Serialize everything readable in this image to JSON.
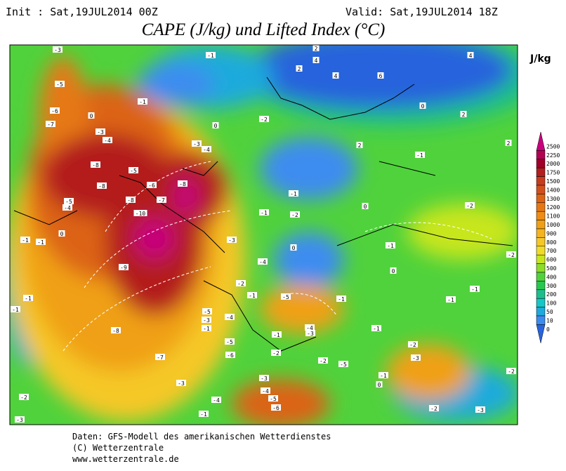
{
  "header": {
    "init": "Init : Sat,19JUL2014 00Z",
    "valid": "Valid: Sat,19JUL2014 18Z",
    "title": "CAPE (J/kg) und Lifted Index (°C)"
  },
  "legend": {
    "unit": "J/kg",
    "levels": [
      {
        "label": "2500",
        "color": "#c8007c"
      },
      {
        "label": "2250",
        "color": "#b40050"
      },
      {
        "label": "2000",
        "color": "#a00028"
      },
      {
        "label": "1750",
        "color": "#b41e1e"
      },
      {
        "label": "1500",
        "color": "#c83c1e"
      },
      {
        "label": "1400",
        "color": "#d2501e"
      },
      {
        "label": "1300",
        "color": "#dc6414"
      },
      {
        "label": "1200",
        "color": "#e67814"
      },
      {
        "label": "1100",
        "color": "#f08c14"
      },
      {
        "label": "1000",
        "color": "#f0a014"
      },
      {
        "label": "900",
        "color": "#f5b41e"
      },
      {
        "label": "800",
        "color": "#f5c828"
      },
      {
        "label": "700",
        "color": "#f0dc28"
      },
      {
        "label": "600",
        "color": "#c8e61e"
      },
      {
        "label": "500",
        "color": "#8cdc28"
      },
      {
        "label": "400",
        "color": "#50d23c"
      },
      {
        "label": "300",
        "color": "#28c850"
      },
      {
        "label": "200",
        "color": "#1ebe8c"
      },
      {
        "label": "100",
        "color": "#14c8c8"
      },
      {
        "label": "50",
        "color": "#1eaadc"
      },
      {
        "label": "10",
        "color": "#3c8cf0"
      },
      {
        "label": "0",
        "color": "#2864dc"
      }
    ]
  },
  "map": {
    "labels": [
      "-1",
      "-3",
      "-5",
      "-6",
      "-7",
      "0",
      "-3",
      "-4",
      "-1",
      "0",
      "-2",
      "-3",
      "-4",
      "-8",
      "-5",
      "-6",
      "-8",
      "-8",
      "-8",
      "-7",
      "-5",
      "-4",
      "-10",
      "-9",
      "-8",
      "-7",
      "2",
      "4",
      "2",
      "4",
      "6",
      "0",
      "2",
      "4",
      "2",
      "2",
      "-1",
      "0",
      "-1",
      "-1",
      "-2",
      "-2",
      "-3",
      "0",
      "-1",
      "0",
      "-4",
      "-2",
      "-5",
      "-1",
      "-1",
      "-1",
      "-1",
      "-5",
      "-3",
      "-1",
      "-4",
      "-4",
      "-3",
      "-1",
      "-1",
      "-5",
      "-6",
      "-2",
      "-2",
      "-5",
      "-2",
      "-3",
      "-1",
      "0",
      "-3",
      "-3",
      "-4",
      "-4",
      "-5",
      "-6",
      "-2",
      "-3",
      "-2",
      "-2",
      "-2",
      "-3",
      "-1",
      "-1",
      "-1",
      "-1",
      "0",
      "-1"
    ]
  },
  "footer": [
    "Daten: GFS-Modell des amerikanischen Wetterdienstes",
    "(C) Wetterzentrale",
    "www.wetterzentrale.de"
  ]
}
